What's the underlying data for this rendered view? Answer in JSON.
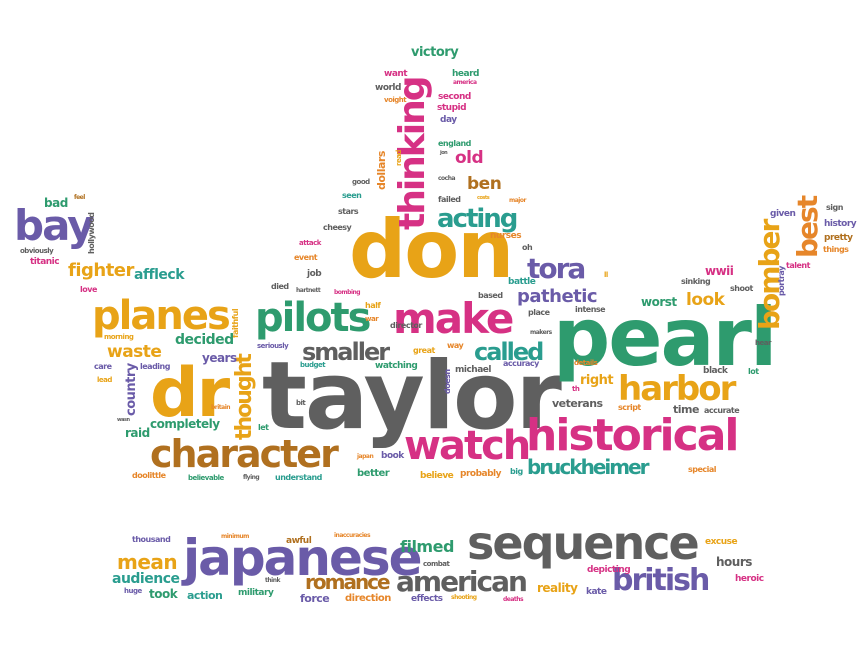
{
  "palette": {
    "yellow": "#e8a317",
    "green": "#2e9b6e",
    "pink": "#d63184",
    "purple": "#6a5ba8",
    "gray": "#5f5f5f",
    "brown": "#b0701f",
    "teal": "#2a9d8f",
    "orange": "#e6862a"
  },
  "words": {
    "taylor": "taylor",
    "pearl": "pearl",
    "don": "don",
    "dr": "dr",
    "japanese": "japanese",
    "sequence": "sequence",
    "historical": "historical",
    "character": "character",
    "watch": "watch",
    "make": "make",
    "planes": "planes",
    "pilots": "pilots",
    "harbor": "harbor",
    "bay": "bay",
    "thinking": "thinking",
    "british": "british",
    "american": "american",
    "romance": "romance",
    "bruckheimer": "bruckheimer",
    "smaller": "smaller",
    "called": "called",
    "acting": "acting",
    "tora": "tora",
    "bomber": "bomber",
    "best": "best",
    "fighter": "fighter",
    "thought": "thought",
    "pathetic": "pathetic",
    "mean": "mean",
    "filmed": "filmed",
    "audience": "audience",
    "waste": "waste",
    "decided": "decided",
    "affleck": "affleck",
    "look": "look",
    "ben": "ben",
    "old": "old",
    "victory": "victory",
    "veterans": "veterans",
    "completely": "completely",
    "right": "right",
    "worst": "worst",
    "raid": "raid",
    "country": "country",
    "years": "years",
    "hours": "hours",
    "reality": "reality",
    "took": "took",
    "action": "action",
    "force": "force",
    "direction": "direction",
    "military": "military",
    "effects": "effects",
    "awful": "awful",
    "depicting": "depicting",
    "heroic": "heroic",
    "kate": "kate",
    "excuse": "excuse",
    "thousand": "thousand",
    "huge": "huge",
    "think": "think",
    "minimum": "minimum",
    "inaccuracies": "inaccuracies",
    "combat": "combat",
    "shooting": "shooting",
    "deaths": "deaths",
    "believe": "believe",
    "probably": "probably",
    "big": "big",
    "better": "better",
    "special": "special",
    "understand": "understand",
    "flying": "flying",
    "believable": "believable",
    "doolittle": "doolittle",
    "japan": "japan",
    "book": "book",
    "let": "let",
    "bit": "bit",
    "budget": "budget",
    "watching": "watching",
    "michael": "michael",
    "great": "great",
    "seriously": "seriously",
    "faithful": "faithful",
    "britain": "britain",
    "wasn": "wasn",
    "lead": "lead",
    "care": "care",
    "leading": "leading",
    "morning": "morning",
    "love": "love",
    "titanic": "titanic",
    "obviously": "obviously",
    "hollywood": "hollywood",
    "bad": "bad",
    "feel": "feel",
    "accuracy": "accuracy",
    "details": "details",
    "script": "script",
    "time": "time",
    "accurate": "accurate",
    "black": "black",
    "lot": "lot",
    "hear": "hear",
    "shoot": "shoot",
    "sinking": "sinking",
    "wwii": "wwii",
    "talent": "talent",
    "portray": "portray",
    "pretty": "pretty",
    "things": "things",
    "history": "history",
    "sign": "sign",
    "given": "given",
    "intense": "intense",
    "makers": "makers",
    "place": "place",
    "th": "th",
    "battle": "battle",
    "based": "based",
    "oh": "oh",
    "nurses": "nurses",
    "failed": "failed",
    "major": "major",
    "cheesy": "cheesy",
    "stars": "stars",
    "attack": "attack",
    "event": "event",
    "job": "job",
    "died": "died",
    "hartnett": "hartnett",
    "bombing": "bombing",
    "half": "half",
    "war": "war",
    "director": "director",
    "doesn": "doesn",
    "way": "way",
    "seen": "seen",
    "good": "good",
    "dollars": "dollars",
    "read": "read",
    "england": "england",
    "jon": "jon",
    "cocha": "cocha",
    "costs": "costs",
    "day": "day",
    "stupid": "stupid",
    "second": "second",
    "heard": "heard",
    "america": "america",
    "want": "want",
    "world": "world",
    "voight": "voight",
    "ll": "ll"
  }
}
